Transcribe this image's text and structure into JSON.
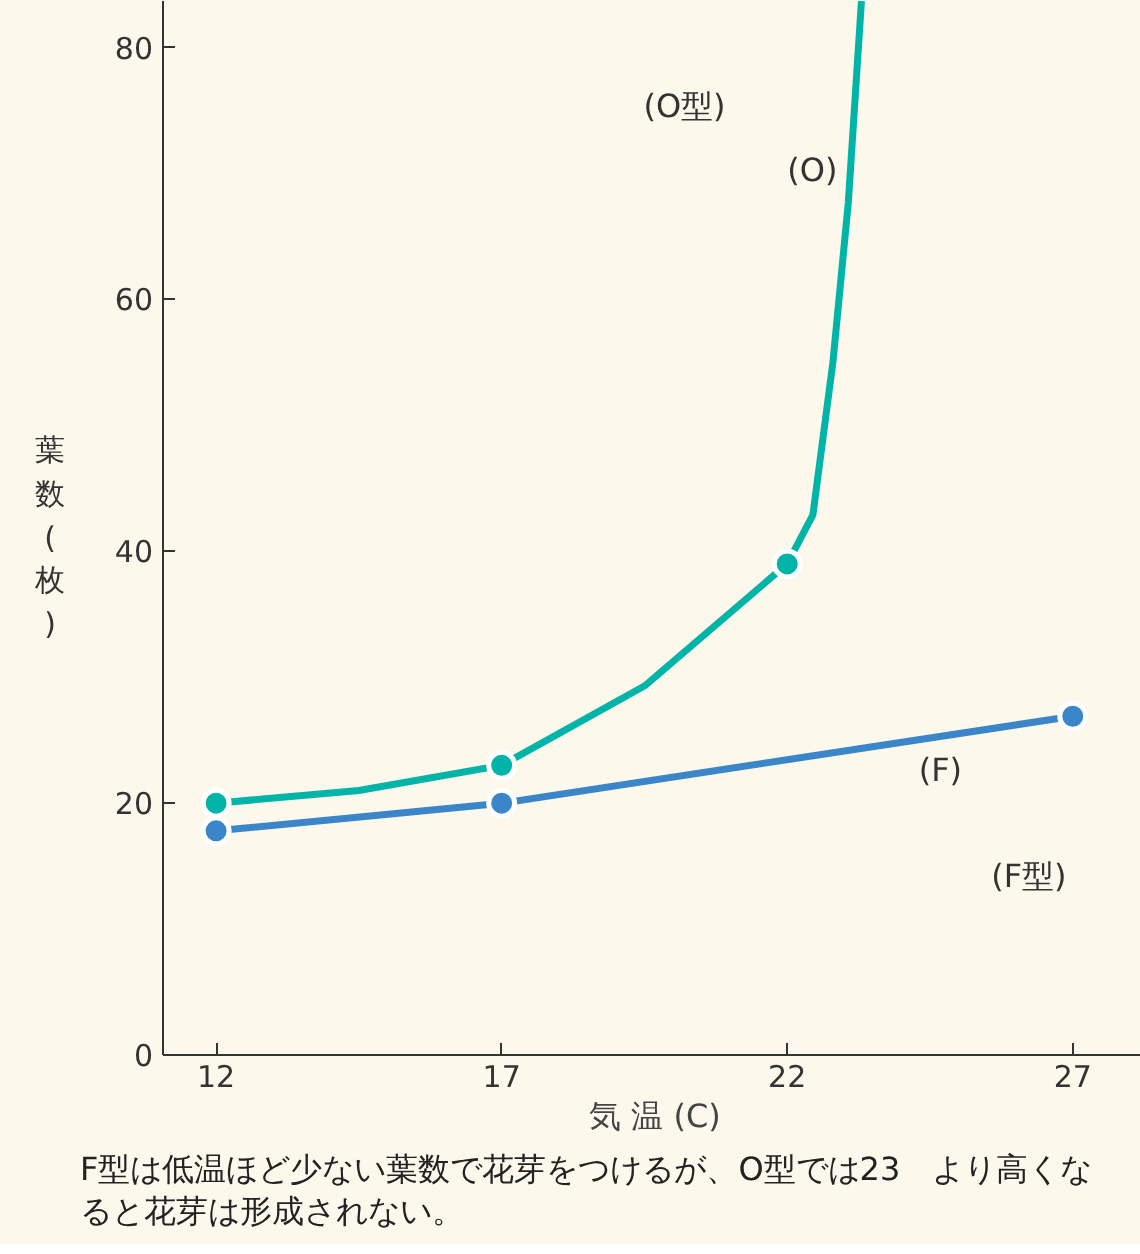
{
  "chart_data": {
    "type": "line",
    "xlabel": "気 温 (C)",
    "ylabel": "葉数(枚)",
    "xlim": [
      11.07,
      28.3
    ],
    "ylim": [
      0,
      83.7
    ],
    "xticks": [
      12,
      17,
      22,
      27
    ],
    "yticks": [
      0,
      20,
      40,
      60,
      80
    ],
    "grid": false,
    "series": [
      {
        "color": "#00b4a8",
        "x": [
          12,
          14.5,
          17,
          19.5,
          22,
          22.45,
          22.8,
          23.07,
          23.3
        ],
        "values": [
          20,
          21,
          23,
          29.3,
          39,
          42.9,
          55,
          67.7,
          83.7
        ],
        "marker": "none"
      },
      {
        "type": "scatter",
        "color": "#00b4a8",
        "x": [
          12,
          17,
          22
        ],
        "values": [
          20,
          23,
          39
        ],
        "marker": "circle"
      },
      {
        "color": "#3a86c8",
        "x": [
          12,
          17,
          27
        ],
        "values": [
          17.8,
          20,
          26.9
        ],
        "marker": "circle"
      }
    ],
    "annotations": [
      "(O型)",
      "(O)",
      "(F)",
      "(F型)",
      "F型は低温ほど少ない葉数で花芽をつけるが、O型では23　より高くなると花芽は形成されない。"
    ]
  }
}
